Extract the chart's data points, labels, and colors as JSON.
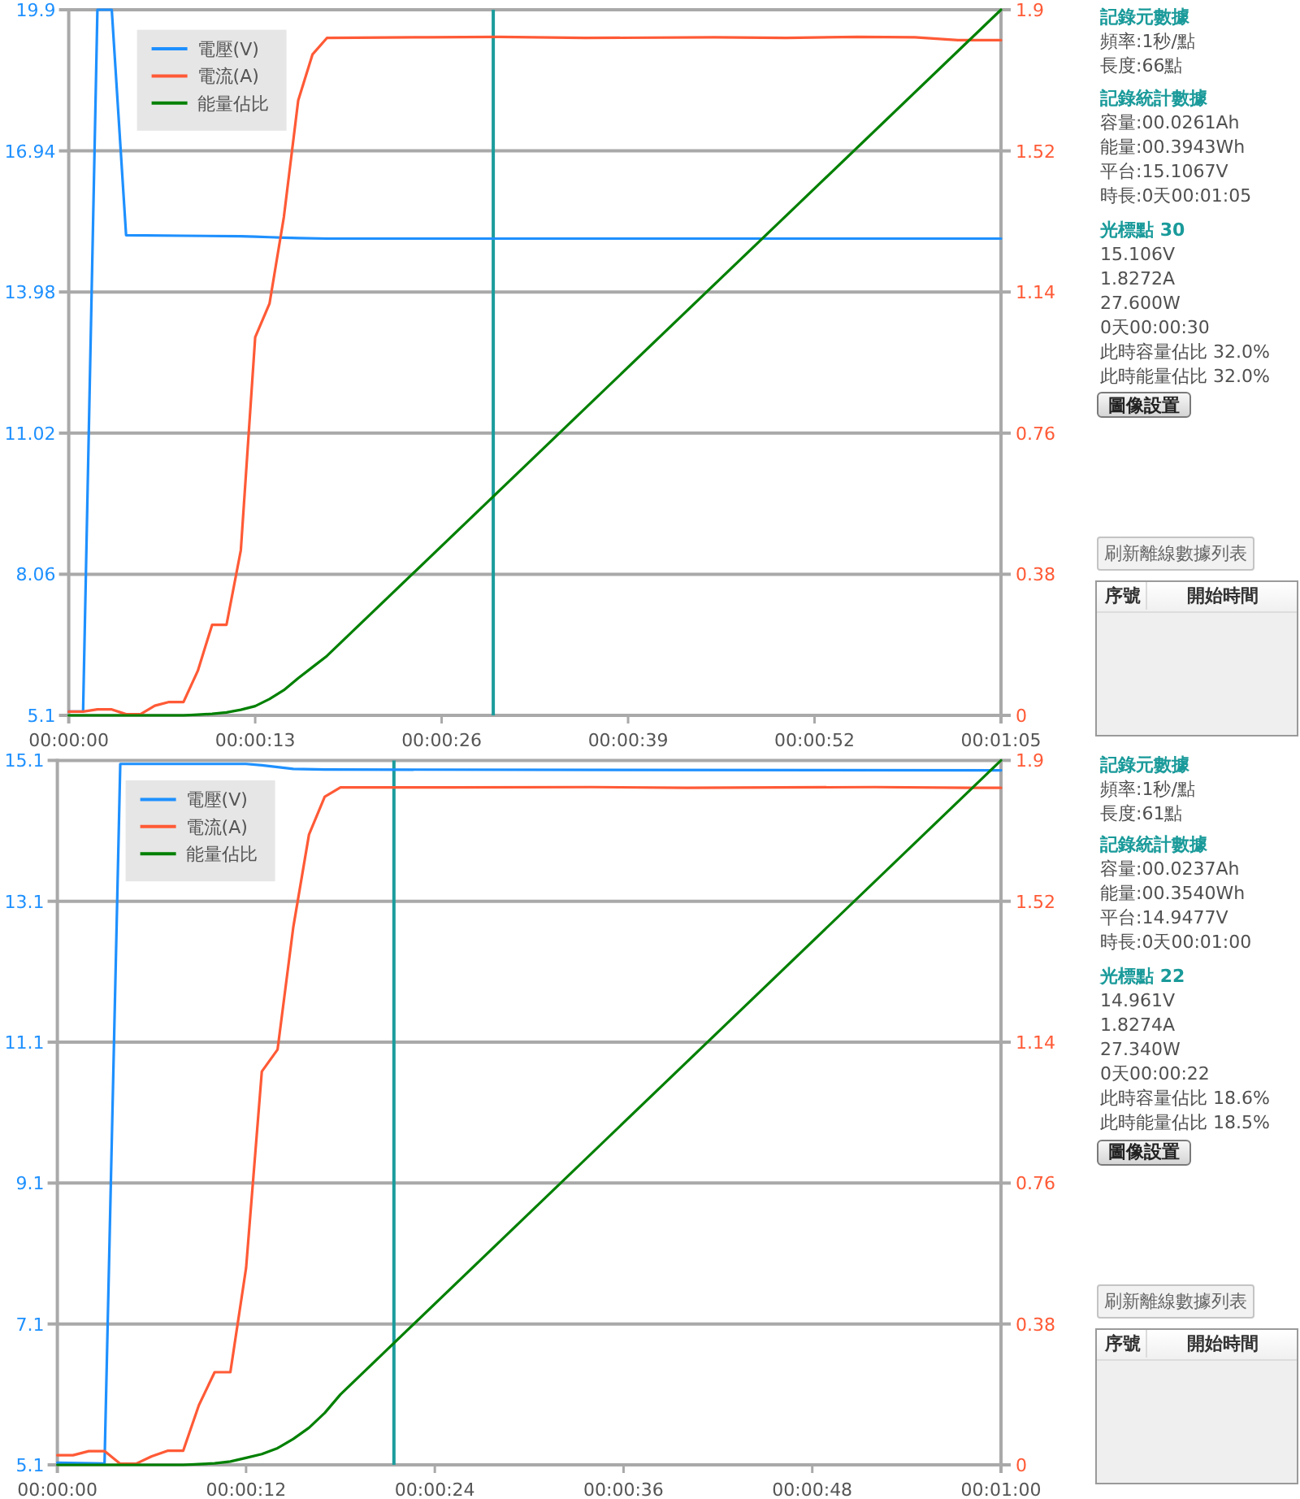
{
  "chart_data": [
    {
      "type": "line",
      "series": [
        {
          "name": "電壓(V)",
          "color": "#1e90ff",
          "x": [
            0,
            1,
            2,
            3,
            4,
            8,
            12,
            13,
            14,
            15,
            16,
            18,
            65
          ],
          "values": [
            5.18,
            5.18,
            19.9,
            19.9,
            15.17,
            15.16,
            15.15,
            15.14,
            15.13,
            15.12,
            15.11,
            15.1,
            15.1
          ]
        },
        {
          "name": "電流(A)",
          "color": "#ff5a36",
          "axis": "y2",
          "x": [
            0,
            1,
            2,
            3,
            4,
            5,
            6,
            7,
            8,
            9,
            10,
            11,
            12,
            13,
            14,
            15,
            16,
            17,
            18,
            25,
            30,
            36,
            45,
            50,
            55,
            59,
            62,
            65
          ],
          "values": [
            0.01,
            0.01,
            0.016,
            0.016,
            0.003,
            0.003,
            0.026,
            0.036,
            0.036,
            0.12,
            0.244,
            0.244,
            0.445,
            1.018,
            1.109,
            1.342,
            1.656,
            1.78,
            1.824,
            1.826,
            1.827,
            1.824,
            1.826,
            1.824,
            1.827,
            1.826,
            1.818,
            1.818
          ]
        },
        {
          "name": "能量佔比",
          "color": "#008000",
          "axis": "y2",
          "x": [
            0,
            8,
            9,
            10,
            11,
            12,
            13,
            14,
            15,
            16,
            17,
            18,
            65
          ],
          "values": [
            0,
            0,
            0.002,
            0.004,
            0.008,
            0.015,
            0.025,
            0.044,
            0.068,
            0.1,
            0.13,
            0.16,
            1.9
          ]
        }
      ],
      "xlim": [
        0,
        65
      ],
      "xticks": [
        {
          "value": 0,
          "label": "00:00:00"
        },
        {
          "value": 13,
          "label": "00:00:13"
        },
        {
          "value": 26,
          "label": "00:00:26"
        },
        {
          "value": 39,
          "label": "00:00:39"
        },
        {
          "value": 52,
          "label": "00:00:52"
        },
        {
          "value": 65,
          "label": "00:01:05"
        }
      ],
      "ylim": [
        5.1,
        19.9
      ],
      "yticks": [
        5.1,
        8.06,
        11.02,
        13.98,
        16.94,
        19.9
      ],
      "y2lim": [
        0,
        1.9
      ],
      "y2ticks": [
        0,
        0.38,
        0.76,
        1.14,
        1.52,
        1.9
      ],
      "ref_lines": [
        {
          "axis": "x",
          "value": 29.6,
          "color": "#1c9c9c"
        }
      ],
      "grid": "y",
      "legend": "top left"
    },
    {
      "type": "other",
      "title": "記錄元數據",
      "annotations": [
        "頻率:1秒/點",
        "長度:66點"
      ]
    },
    {
      "type": "other",
      "title": "記錄統計數據",
      "annotations": [
        "容量:00.0261Ah",
        "能量:00.3943Wh",
        "平台:15.1067V",
        "時長:0天00:01:05"
      ]
    },
    {
      "type": "other",
      "title": "光標點 30",
      "annotations": [
        "15.106V",
        "1.8272A",
        "27.600W",
        "0天00:00:30",
        "此時容量佔比 32.0%",
        "此時能量佔比 32.0%"
      ]
    },
    {
      "type": "other",
      "annotations": [
        "圖像設置",
        "刷新離線數據列表",
        "序號",
        "開始時間"
      ]
    },
    {
      "type": "line",
      "series": [
        {
          "name": "電壓(V)",
          "color": "#1e90ff",
          "x": [
            0,
            3,
            4,
            12,
            13,
            15,
            17,
            60
          ],
          "values": [
            5.13,
            5.12,
            15.05,
            15.05,
            15.03,
            14.98,
            14.97,
            14.96
          ]
        },
        {
          "name": "電流(A)",
          "color": "#ff5a36",
          "axis": "y2",
          "x": [
            0,
            1,
            2,
            3,
            4,
            5,
            6,
            7,
            8,
            9,
            10,
            11,
            12,
            13,
            14,
            15,
            16,
            17,
            18,
            25,
            34,
            40,
            46,
            52,
            58,
            60
          ],
          "values": [
            0.026,
            0.026,
            0.037,
            0.037,
            0.003,
            0.003,
            0.023,
            0.038,
            0.038,
            0.161,
            0.25,
            0.25,
            0.531,
            1.061,
            1.12,
            1.45,
            1.7,
            1.802,
            1.827,
            1.827,
            1.828,
            1.826,
            1.827,
            1.828,
            1.826,
            1.826
          ]
        },
        {
          "name": "能量佔比",
          "color": "#008000",
          "axis": "y2",
          "x": [
            0,
            8,
            9,
            10,
            11,
            12,
            13,
            14,
            15,
            16,
            17,
            18,
            60
          ],
          "values": [
            0,
            0,
            0.002,
            0.004,
            0.009,
            0.019,
            0.029,
            0.045,
            0.07,
            0.1,
            0.14,
            0.19,
            1.9
          ]
        }
      ],
      "xlim": [
        0,
        60
      ],
      "xticks": [
        {
          "value": 0,
          "label": "00:00:00"
        },
        {
          "value": 12,
          "label": "00:00:12"
        },
        {
          "value": 24,
          "label": "00:00:24"
        },
        {
          "value": 36,
          "label": "00:00:36"
        },
        {
          "value": 48,
          "label": "00:00:48"
        },
        {
          "value": 60,
          "label": "00:01:00"
        }
      ],
      "ylim": [
        5.1,
        15.1
      ],
      "yticks": [
        5.1,
        7.1,
        9.1,
        11.1,
        13.1,
        15.1
      ],
      "y2lim": [
        0,
        1.9
      ],
      "y2ticks": [
        0,
        0.38,
        0.76,
        1.14,
        1.52,
        1.9
      ],
      "ref_lines": [
        {
          "axis": "x",
          "value": 21.4,
          "color": "#1c9c9c"
        }
      ],
      "grid": "y",
      "legend": "top left"
    },
    {
      "type": "other",
      "title": "記錄元數據",
      "annotations": [
        "頻率:1秒/點",
        "長度:61點"
      ]
    },
    {
      "type": "other",
      "title": "記錄統計數據",
      "annotations": [
        "容量:00.0237Ah",
        "能量:00.3540Wh",
        "平台:14.9477V",
        "時長:0天00:01:00"
      ]
    },
    {
      "type": "other",
      "title": "光標點 22",
      "annotations": [
        "14.961V",
        "1.8274A",
        "27.340W",
        "0天00:00:22",
        "此時容量佔比 18.6%",
        "此時能量佔比 18.5%"
      ]
    },
    {
      "type": "other",
      "annotations": [
        "圖像設置",
        "刷新離線數據列表",
        "序號",
        "開始時間"
      ]
    }
  ]
}
